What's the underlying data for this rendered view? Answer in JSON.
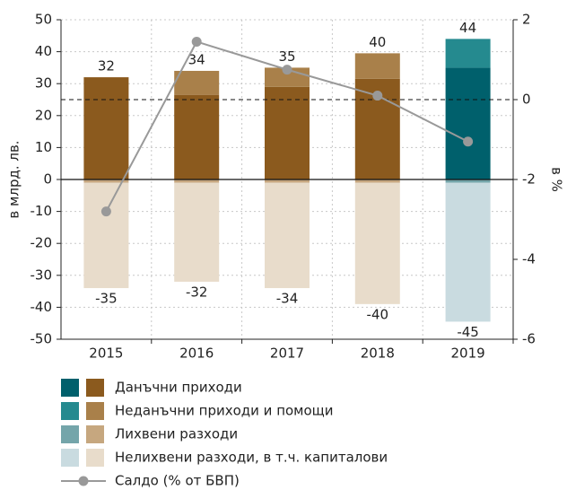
{
  "chart_data": {
    "type": "bar",
    "categories": [
      "2015",
      "2016",
      "2017",
      "2018",
      "2019"
    ],
    "alt_from": "2019",
    "series": [
      {
        "name": "Данъчни приходи",
        "color": "#8b5a1e",
        "alt_color": "#00606c",
        "values": [
          32,
          26.5,
          29,
          31.5,
          35
        ]
      },
      {
        "name": "Неданъчни приходи и помощи",
        "color": "#a9804a",
        "alt_color": "#258a8f",
        "values": [
          0,
          7.5,
          6,
          8,
          9
        ]
      },
      {
        "name": "Лихвени разходи",
        "color": "#c6a77f",
        "alt_color": "#74a5aa",
        "values": [
          -1,
          -1,
          -1,
          -1,
          -1
        ]
      },
      {
        "name": "Нелихвени разходи, в т.ч. капиталови",
        "color": "#e8dccb",
        "alt_color": "#c9dbe0",
        "values": [
          -33,
          -31,
          -33,
          -38,
          -43.5
        ]
      },
      {
        "name": "Салдо (% от БВП)",
        "type": "line",
        "axis": "y2",
        "color": "#999999",
        "values": [
          -2.8,
          1.45,
          0.75,
          0.1,
          -1.05
        ]
      }
    ],
    "totals_positive": [
      32,
      34,
      35,
      40,
      44
    ],
    "totals_negative": [
      -35,
      -32,
      -34,
      -40,
      -45
    ],
    "ylim": [
      -50,
      50
    ],
    "yticks": [
      -50,
      -40,
      -30,
      -20,
      -10,
      0,
      10,
      20,
      30,
      40,
      50
    ],
    "y2lim": [
      -6,
      2
    ],
    "y2ticks": [
      -6,
      -4,
      -2,
      0,
      2
    ],
    "y2_reference": 0,
    "ylabel": "в млрд. лв.",
    "y2label": "в %",
    "grid": true
  }
}
